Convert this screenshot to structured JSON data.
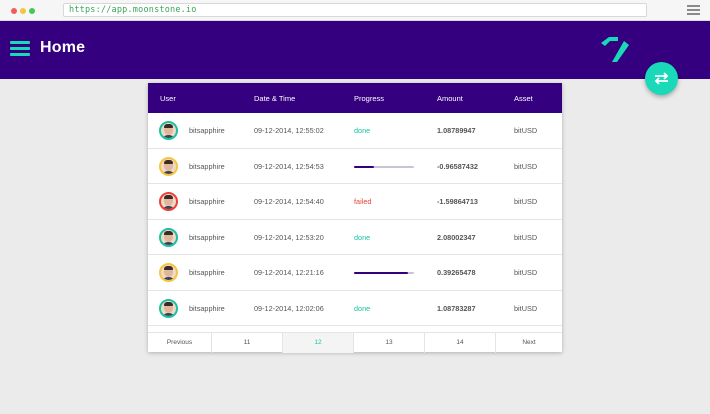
{
  "browser": {
    "url": "https://app.moonstone.io"
  },
  "header": {
    "title": "Home"
  },
  "colors": {
    "primary": "#340080",
    "accent": "#19d9b9",
    "done": "#19c2a3",
    "failed": "#e8423a"
  },
  "icons": {
    "menu": "hamburger-icon",
    "logo": "moonstone-logo-icon",
    "fab": "swap-arrows-icon"
  },
  "table": {
    "columns": [
      "User",
      "Date & Time",
      "Progress",
      "Amount",
      "Asset"
    ],
    "rows": [
      {
        "user": "bitsapphire",
        "datetime": "09-12-2014, 12:55:02",
        "status": "done",
        "progress": 1.0,
        "amount": "1.08789947",
        "asset": "bitUSD",
        "avatar_ring": "#19c2a3"
      },
      {
        "user": "bitsapphire",
        "datetime": "09-12-2014, 12:54:53",
        "status": "",
        "progress": 0.33,
        "amount": "-0.96587432",
        "asset": "bitUSD",
        "avatar_ring": "#f5c542"
      },
      {
        "user": "bitsapphire",
        "datetime": "09-12-2014, 12:54:40",
        "status": "failed",
        "progress": 0,
        "amount": "-1.59864713",
        "asset": "bitUSD",
        "avatar_ring": "#e8423a"
      },
      {
        "user": "bitsapphire",
        "datetime": "09-12-2014, 12:53:20",
        "status": "done",
        "progress": 1.0,
        "amount": "2.08002347",
        "asset": "bitUSD",
        "avatar_ring": "#19c2a3"
      },
      {
        "user": "bitsapphire",
        "datetime": "09-12-2014, 12:21:16",
        "status": "",
        "progress": 0.9,
        "amount": "0.39265478",
        "asset": "bitUSD",
        "avatar_ring": "#f5c542"
      },
      {
        "user": "bitsapphire",
        "datetime": "09-12-2014, 12:02:06",
        "status": "done",
        "progress": 1.0,
        "amount": "1.08783287",
        "asset": "bitUSD",
        "avatar_ring": "#19c2a3"
      }
    ]
  },
  "pagination": {
    "previous": "Previous",
    "pages": [
      "11",
      "12",
      "13",
      "14"
    ],
    "active_page": "12",
    "next": "Next"
  }
}
